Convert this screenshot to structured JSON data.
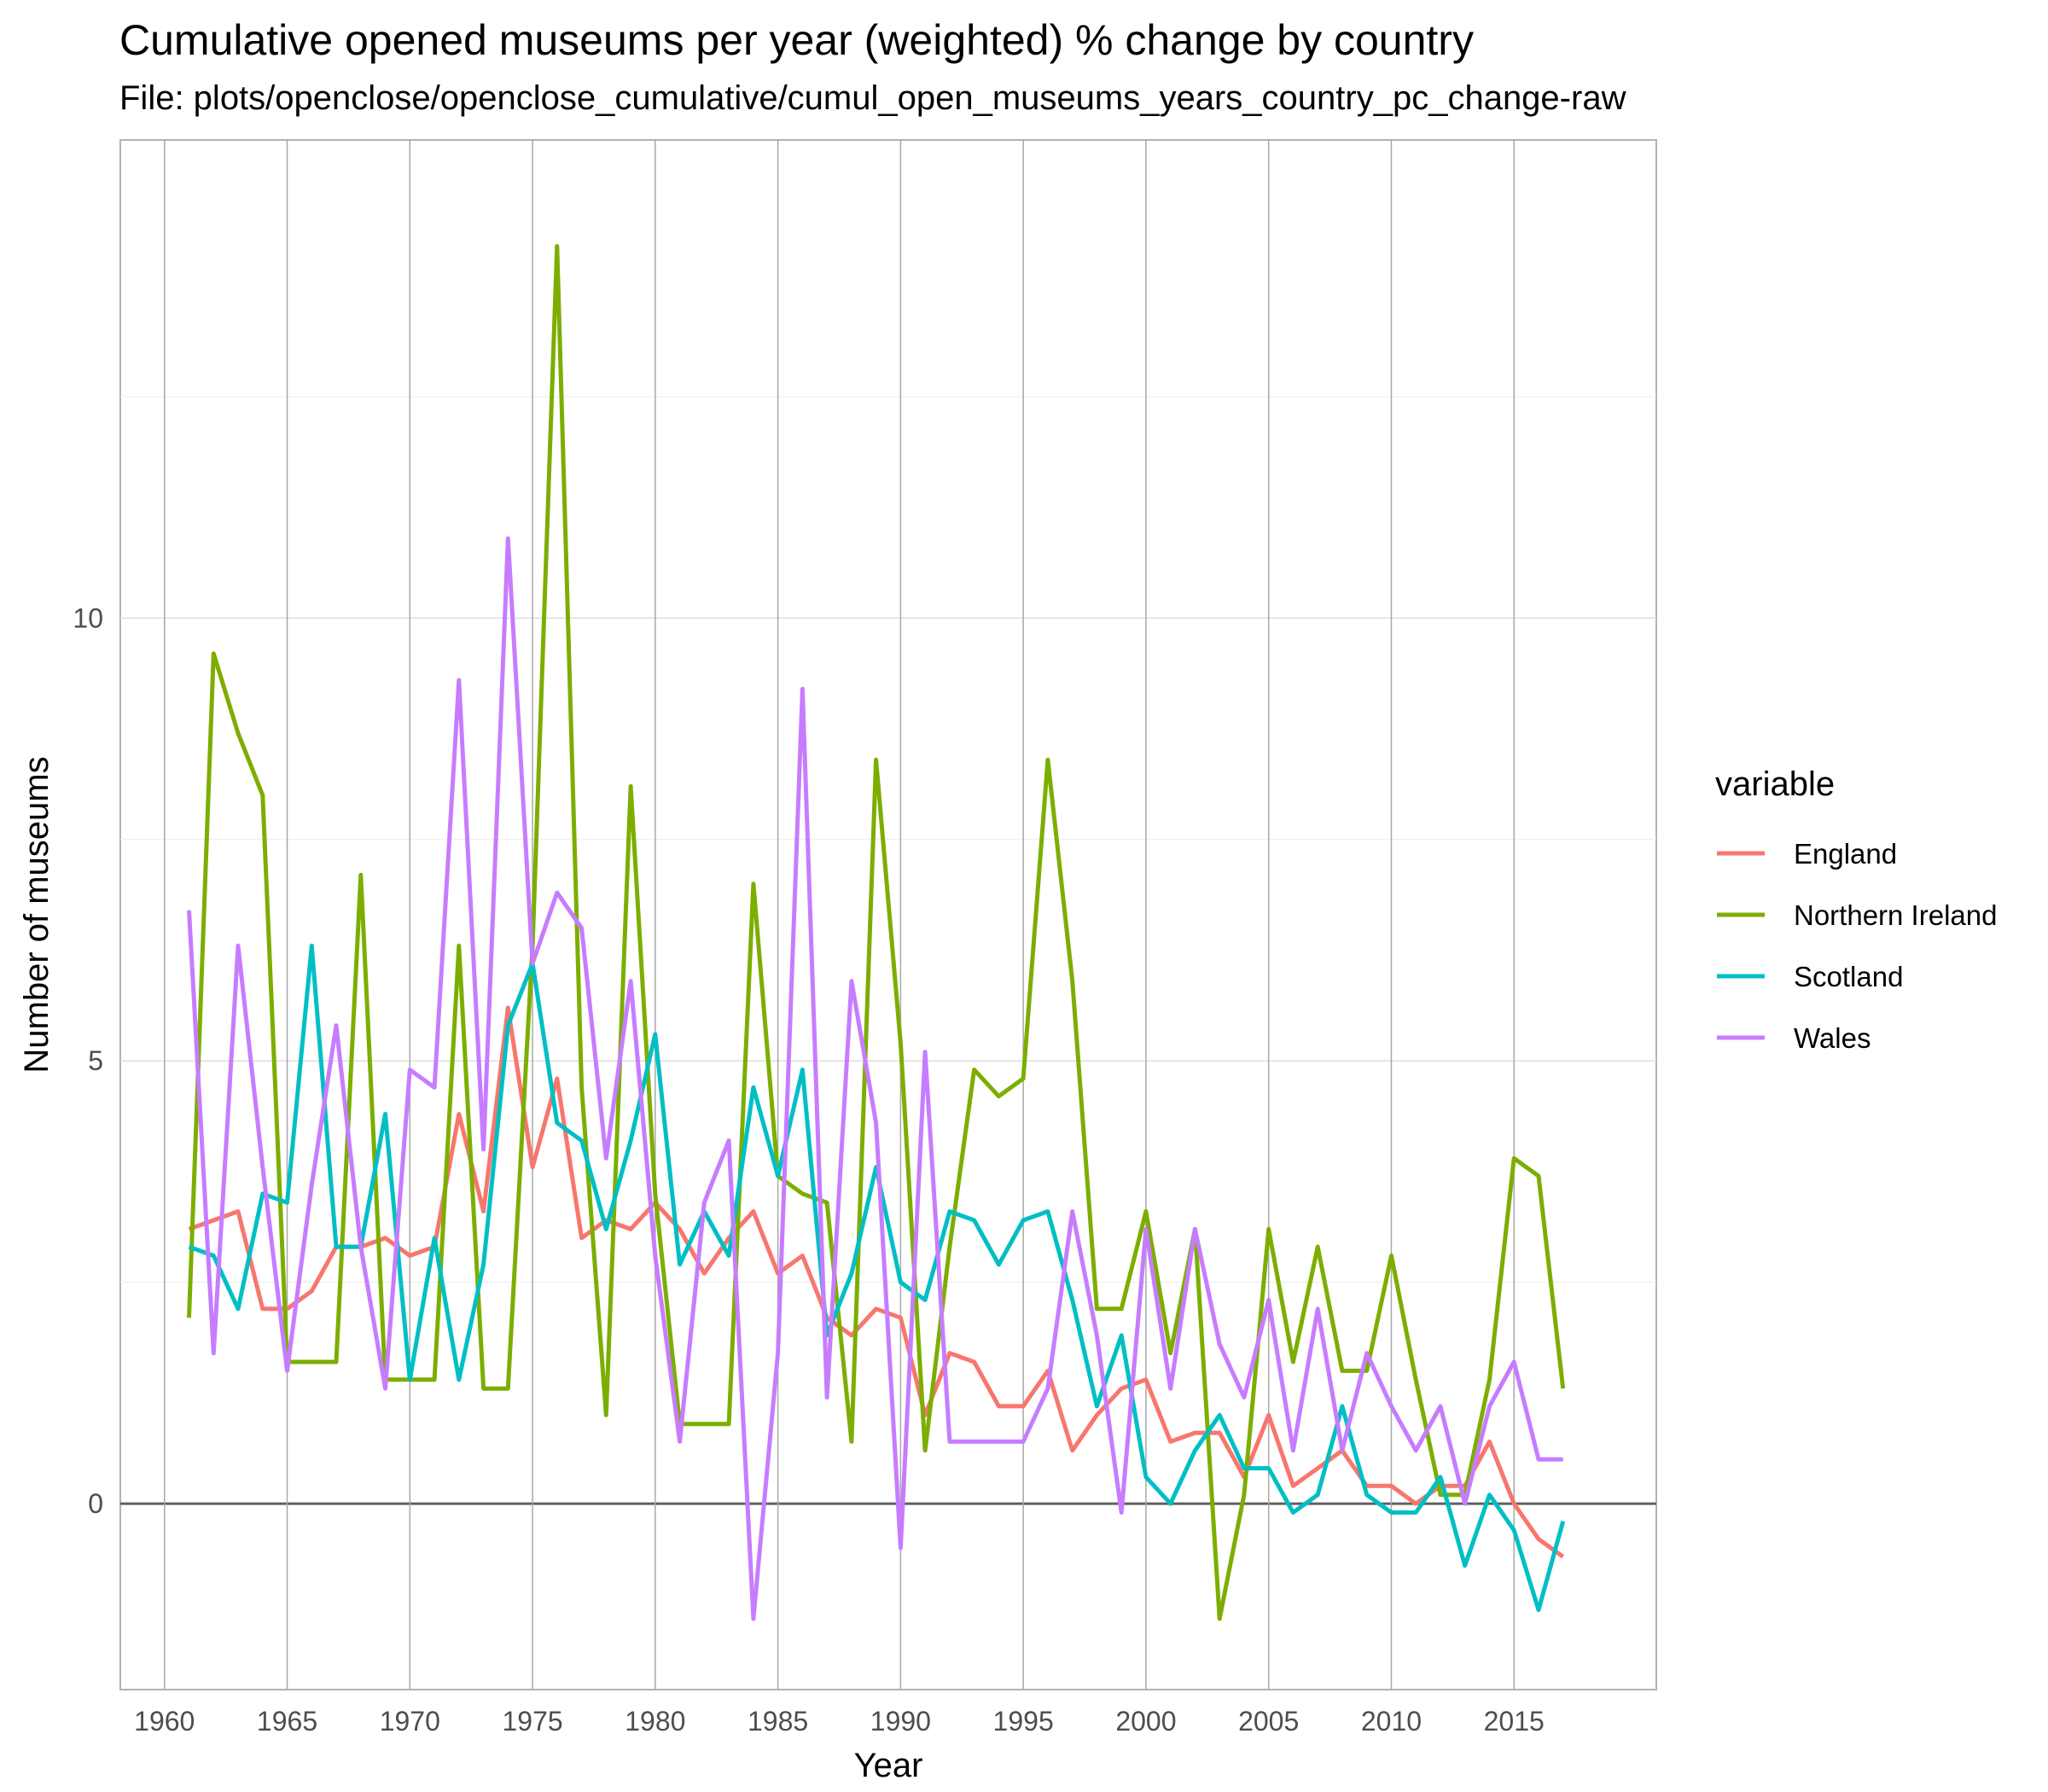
{
  "chart_data": {
    "type": "line",
    "title": "Cumulative opened museums per year (weighted) % change by country",
    "subtitle": "File: plots/openclose/openclose_cumulative/cumul_open_museums_years_country_pc_change-raw",
    "xlabel": "Year",
    "ylabel": "Number of museums",
    "xlim": [
      1958.2,
      2020.8
    ],
    "ylim": [
      -2.1,
      15.4
    ],
    "x_ticks": [
      1960,
      1965,
      1970,
      1975,
      1980,
      1985,
      1990,
      1995,
      2000,
      2005,
      2010,
      2015
    ],
    "y_ticks": [
      0,
      5,
      10
    ],
    "grid": true,
    "legend": {
      "title": "variable",
      "position": "right"
    },
    "x": [
      1961,
      1962,
      1963,
      1964,
      1965,
      1966,
      1967,
      1968,
      1969,
      1970,
      1971,
      1972,
      1973,
      1974,
      1975,
      1976,
      1977,
      1978,
      1979,
      1980,
      1981,
      1982,
      1983,
      1984,
      1985,
      1986,
      1987,
      1988,
      1989,
      1990,
      1991,
      1992,
      1993,
      1994,
      1995,
      1996,
      1997,
      1998,
      1999,
      2000,
      2001,
      2002,
      2003,
      2004,
      2005,
      2006,
      2007,
      2008,
      2009,
      2010,
      2011,
      2012,
      2013,
      2014,
      2015,
      2016,
      2017
    ],
    "series": [
      {
        "name": "England",
        "color": "#F8766D",
        "values": [
          3.1,
          3.2,
          3.3,
          2.2,
          2.2,
          2.4,
          2.9,
          2.9,
          3.0,
          2.8,
          2.9,
          4.4,
          3.3,
          5.6,
          3.8,
          4.8,
          3.0,
          3.2,
          3.1,
          3.4,
          3.1,
          2.6,
          3.0,
          3.3,
          2.6,
          2.8,
          2.1,
          1.9,
          2.2,
          2.1,
          1.0,
          1.7,
          1.6,
          1.1,
          1.1,
          1.5,
          0.6,
          1.0,
          1.3,
          1.4,
          0.7,
          0.8,
          0.8,
          0.3,
          1.0,
          0.2,
          0.4,
          0.6,
          0.2,
          0.2,
          0.0,
          0.2,
          0.2,
          0.7,
          0.0,
          -0.4,
          -0.6
        ]
      },
      {
        "name": "Northern Ireland",
        "color": "#7CAE00",
        "values": [
          2.1,
          9.6,
          8.7,
          8.0,
          1.6,
          1.6,
          1.6,
          7.1,
          1.4,
          1.4,
          1.4,
          6.3,
          1.3,
          1.3,
          6.3,
          14.2,
          4.7,
          1.0,
          8.1,
          3.5,
          0.9,
          0.9,
          0.9,
          7.0,
          3.7,
          3.5,
          3.4,
          0.7,
          8.4,
          5.2,
          0.6,
          2.9,
          4.9,
          4.6,
          4.8,
          8.4,
          5.9,
          2.2,
          2.2,
          3.3,
          1.7,
          3.1,
          -1.3,
          0.1,
          3.1,
          1.6,
          2.9,
          1.5,
          1.5,
          2.8,
          1.4,
          0.1,
          0.1,
          1.4,
          3.9,
          3.7,
          1.3
        ]
      },
      {
        "name": "Scotland",
        "color": "#00BFC4",
        "values": [
          2.9,
          2.8,
          2.2,
          3.5,
          3.4,
          6.3,
          2.9,
          2.9,
          4.4,
          1.4,
          3.0,
          1.4,
          2.7,
          5.4,
          6.1,
          4.3,
          4.1,
          3.1,
          4.1,
          5.3,
          2.7,
          3.3,
          2.8,
          4.7,
          3.7,
          4.9,
          1.9,
          2.6,
          3.8,
          2.5,
          2.3,
          3.3,
          3.2,
          2.7,
          3.2,
          3.3,
          2.3,
          1.1,
          1.9,
          0.3,
          0.0,
          0.6,
          1.0,
          0.4,
          0.4,
          -0.1,
          0.1,
          1.1,
          0.1,
          -0.1,
          -0.1,
          0.3,
          -0.7,
          0.1,
          -0.3,
          -1.2,
          -0.2
        ]
      },
      {
        "name": "Wales",
        "color": "#C77CFF",
        "values": [
          6.7,
          1.7,
          6.3,
          3.8,
          1.5,
          3.6,
          5.4,
          2.9,
          1.3,
          4.9,
          4.7,
          9.3,
          4.0,
          10.9,
          6.1,
          6.9,
          6.5,
          3.9,
          5.9,
          2.8,
          0.7,
          3.4,
          4.1,
          -1.3,
          1.7,
          9.2,
          1.2,
          5.9,
          4.3,
          -0.5,
          5.1,
          0.7,
          0.7,
          0.7,
          0.7,
          1.3,
          3.3,
          1.9,
          -0.1,
          3.1,
          1.3,
          3.1,
          1.8,
          1.2,
          2.3,
          0.6,
          2.2,
          0.6,
          1.7,
          1.1,
          0.6,
          1.1,
          0.0,
          1.1,
          1.6,
          0.5,
          0.5
        ]
      }
    ]
  }
}
